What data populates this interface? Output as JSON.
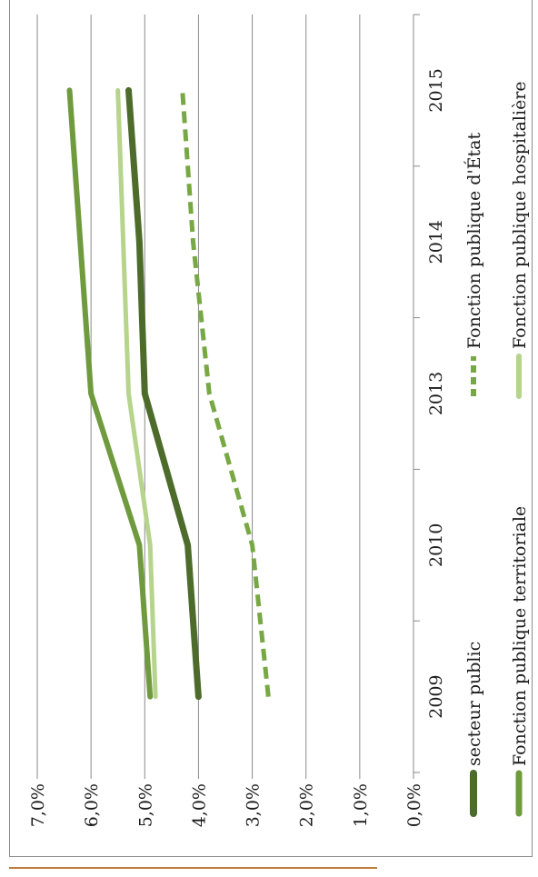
{
  "chart_data": {
    "type": "line",
    "orientation": "rotated-90-ccw",
    "categories": [
      "2009",
      "2010",
      "2013",
      "2014",
      "2015"
    ],
    "ylim": [
      0,
      7
    ],
    "yticks": [
      "0,0%",
      "1,0%",
      "2,0%",
      "3,0%",
      "4,0%",
      "5,0%",
      "6,0%",
      "7,0%"
    ],
    "grid": true,
    "legend_position": "bottom",
    "series": [
      {
        "name": "secteur public",
        "values": [
          4.0,
          4.2,
          5.0,
          5.1,
          5.3
        ],
        "color": "#4d6b2a",
        "dash": "solid",
        "width": 7
      },
      {
        "name": "Fonction publique d'État",
        "values": [
          2.7,
          3.0,
          3.8,
          4.1,
          4.3
        ],
        "color": "#77a844",
        "dash": "dashed",
        "width": 5
      },
      {
        "name": "Fonction publique territoriale",
        "values": [
          4.9,
          5.1,
          6.0,
          6.2,
          6.4
        ],
        "color": "#6f9a3e",
        "dash": "solid",
        "width": 6
      },
      {
        "name": "Fonction publique hospitalière",
        "values": [
          4.8,
          4.9,
          5.3,
          5.4,
          5.5
        ],
        "color": "#b6d48b",
        "dash": "solid",
        "width": 5
      }
    ]
  }
}
